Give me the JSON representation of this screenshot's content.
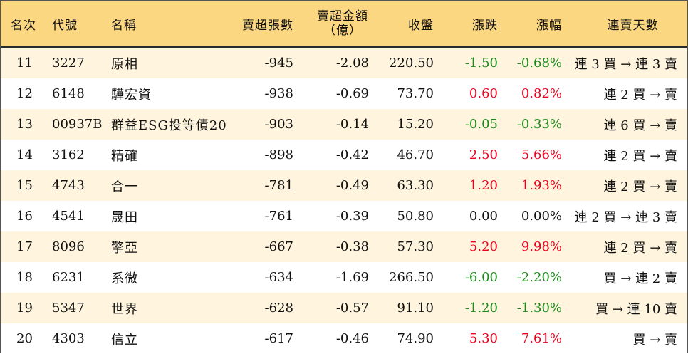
{
  "headers": {
    "rank": "名次",
    "code": "代號",
    "name": "名稱",
    "sell_lots": "賣超張數",
    "sell_amount_line1": "賣超金額",
    "sell_amount_line2": "（億）",
    "close": "收盤",
    "change": "漲跌",
    "change_pct": "漲幅",
    "streak": "連賣天數"
  },
  "rows": [
    {
      "rank": "11",
      "code": "3227",
      "name": "原相",
      "sell_lots": "-945",
      "sell_amount": "-2.08",
      "close": "220.50",
      "change": "-1.50",
      "change_pct": "-0.68%",
      "streak": "連 3 買 → 連 3 賣",
      "dir": "neg"
    },
    {
      "rank": "12",
      "code": "6148",
      "name": "驊宏資",
      "sell_lots": "-938",
      "sell_amount": "-0.69",
      "close": "73.70",
      "change": "0.60",
      "change_pct": "0.82%",
      "streak": "連 2 買 → 賣",
      "dir": "pos"
    },
    {
      "rank": "13",
      "code": "00937B",
      "name": "群益ESG投等債20",
      "sell_lots": "-903",
      "sell_amount": "-0.14",
      "close": "15.20",
      "change": "-0.05",
      "change_pct": "-0.33%",
      "streak": "連 6 買 → 賣",
      "dir": "neg"
    },
    {
      "rank": "14",
      "code": "3162",
      "name": "精確",
      "sell_lots": "-898",
      "sell_amount": "-0.42",
      "close": "46.70",
      "change": "2.50",
      "change_pct": "5.66%",
      "streak": "連 2 買 → 賣",
      "dir": "pos"
    },
    {
      "rank": "15",
      "code": "4743",
      "name": "合一",
      "sell_lots": "-781",
      "sell_amount": "-0.49",
      "close": "63.30",
      "change": "1.20",
      "change_pct": "1.93%",
      "streak": "連 2 買 → 賣",
      "dir": "pos"
    },
    {
      "rank": "16",
      "code": "4541",
      "name": "晟田",
      "sell_lots": "-761",
      "sell_amount": "-0.39",
      "close": "50.80",
      "change": "0.00",
      "change_pct": "0.00%",
      "streak": "連 2 買 → 連 3 賣",
      "dir": "flat"
    },
    {
      "rank": "17",
      "code": "8096",
      "name": "擎亞",
      "sell_lots": "-667",
      "sell_amount": "-0.38",
      "close": "57.30",
      "change": "5.20",
      "change_pct": "9.98%",
      "streak": "連 2 買 → 賣",
      "dir": "pos"
    },
    {
      "rank": "18",
      "code": "6231",
      "name": "系微",
      "sell_lots": "-634",
      "sell_amount": "-1.69",
      "close": "266.50",
      "change": "-6.00",
      "change_pct": "-2.20%",
      "streak": "買 → 連 2 賣",
      "dir": "neg"
    },
    {
      "rank": "19",
      "code": "5347",
      "name": "世界",
      "sell_lots": "-628",
      "sell_amount": "-0.57",
      "close": "91.10",
      "change": "-1.20",
      "change_pct": "-1.30%",
      "streak": "買 → 連 10 賣",
      "dir": "neg"
    },
    {
      "rank": "20",
      "code": "4303",
      "name": "信立",
      "sell_lots": "-617",
      "sell_amount": "-0.46",
      "close": "74.90",
      "change": "5.30",
      "change_pct": "7.61%",
      "streak": "買 → 賣",
      "dir": "pos"
    }
  ],
  "colors": {
    "up": "#e8001c",
    "down": "#1a8a1a",
    "header_bg": "#fbd782",
    "stripe_bg": "#fff4dd"
  }
}
